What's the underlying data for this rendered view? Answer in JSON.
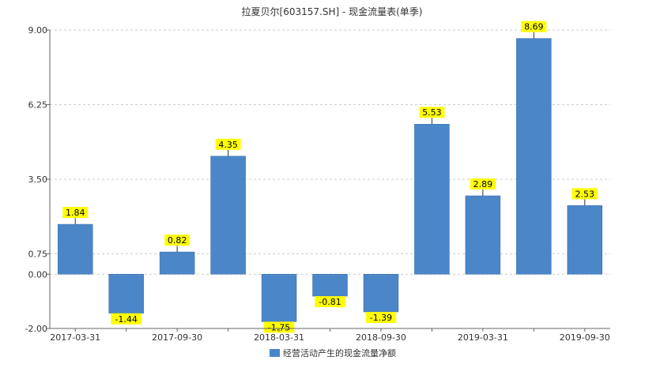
{
  "chart_data": {
    "type": "bar",
    "title": "拉夏贝尔[603157.SH] - 现金流量表(单季)",
    "categories": [
      "2017-03-31",
      "2017-06-30",
      "2017-09-30",
      "2017-12-31",
      "2018-03-31",
      "2018-06-30",
      "2018-09-30",
      "2018-12-31",
      "2019-03-31",
      "2019-06-30",
      "2019-09-30"
    ],
    "x_tick_labels": [
      "2017-03-31",
      "2017-09-30",
      "2018-03-31",
      "2018-09-30",
      "2019-03-31",
      "2019-09-30"
    ],
    "series": [
      {
        "name": "经营活动产生的现金流量净额",
        "values": [
          1.84,
          -1.44,
          0.82,
          4.35,
          -1.75,
          -0.81,
          -1.39,
          5.53,
          2.89,
          8.69,
          2.53
        ],
        "labels": [
          "1.84",
          "-1.44",
          "0.82",
          "4.35",
          "-1.75",
          "-0.81",
          "-1.39",
          "5.53",
          "2.89",
          "8.69",
          "2.53"
        ]
      }
    ],
    "ylim": [
      -2.0,
      9.0
    ],
    "y_ticks": [
      -2.0,
      0.0,
      0.75,
      3.5,
      6.25,
      9.0
    ],
    "y_tick_labels": [
      "-2.00",
      "0.00",
      "0.75",
      "3.50",
      "6.25",
      "9.00"
    ],
    "xlabel": "",
    "ylabel": "",
    "grid": true,
    "legend_position": "bottom",
    "colors": {
      "bar": "#4a86c8",
      "bar_edge": "#3a6fa8",
      "data_label_bg": "#ffff00",
      "grid": "#cccccc",
      "axis": "#666666"
    }
  }
}
